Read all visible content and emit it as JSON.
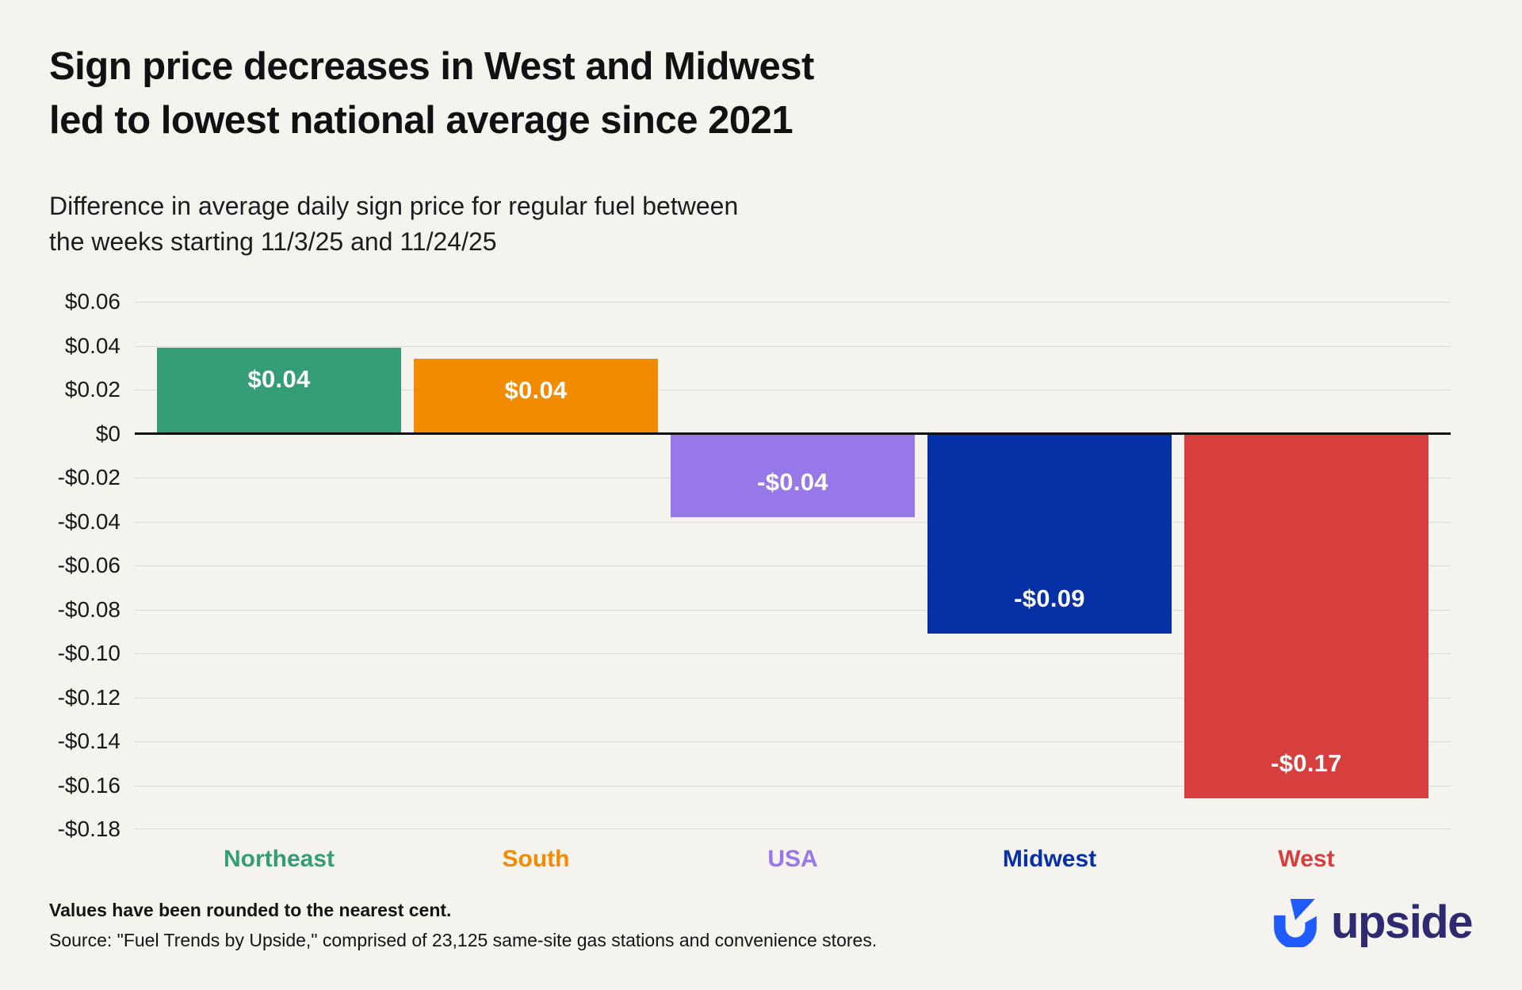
{
  "header": {
    "title_line1": "Sign price decreases in West and Midwest",
    "title_line2": "led to lowest national average since 2021",
    "subtitle_line1": "Difference in average daily sign price for regular fuel between",
    "subtitle_line2": "the weeks starting 11/3/25 and 11/24/25"
  },
  "chart_data": {
    "type": "bar",
    "title": "Sign price decreases in West and Midwest led to lowest national average since 2021",
    "subtitle": "Difference in average daily sign price for regular fuel between the weeks starting 11/3/25 and 11/24/25",
    "categories": [
      "Northeast",
      "South",
      "USA",
      "Midwest",
      "West"
    ],
    "values": [
      0.04,
      0.04,
      -0.04,
      -0.09,
      -0.17
    ],
    "plotted_values": [
      0.039,
      0.034,
      -0.038,
      -0.091,
      -0.166
    ],
    "bar_labels": [
      "$0.04",
      "$0.04",
      "-$0.04",
      "-$0.09",
      "-$0.17"
    ],
    "bar_colors": [
      "#359D76",
      "#F28B00",
      "#9678E8",
      "#0530A6",
      "#D73E3E"
    ],
    "ylim": [
      -0.18,
      0.06
    ],
    "yticks": [
      {
        "value": 0.06,
        "label": "$0.06"
      },
      {
        "value": 0.04,
        "label": "$0.04"
      },
      {
        "value": 0.02,
        "label": "$0.02"
      },
      {
        "value": 0,
        "label": "$0"
      },
      {
        "value": -0.02,
        "label": "-$0.02"
      },
      {
        "value": -0.04,
        "label": "-$0.04"
      },
      {
        "value": -0.06,
        "label": "-$0.06"
      },
      {
        "value": -0.08,
        "label": "-$0.08"
      },
      {
        "value": -0.1,
        "label": "-$0.10"
      },
      {
        "value": -0.12,
        "label": "-$0.12"
      },
      {
        "value": -0.14,
        "label": "-$0.14"
      },
      {
        "value": -0.16,
        "label": "-$0.16"
      },
      {
        "value": -0.18,
        "label": "-$0.18"
      }
    ],
    "grid": "horizontal",
    "legend_position": "none",
    "xlabel": "",
    "ylabel": ""
  },
  "footer": {
    "note": "Values have been rounded to the nearest cent.",
    "source": "Source: \"Fuel Trends by Upside,\" comprised of 23,125 same-site gas stations and convenience stores."
  },
  "logo": {
    "name": "upside",
    "mark_color": "#1F5BFF",
    "text_color": "#2E2A72"
  },
  "colors": {
    "background": "#F5F3EE",
    "text": "#141414",
    "gridline": "#DBD8D0",
    "zero_line": "#101010"
  }
}
